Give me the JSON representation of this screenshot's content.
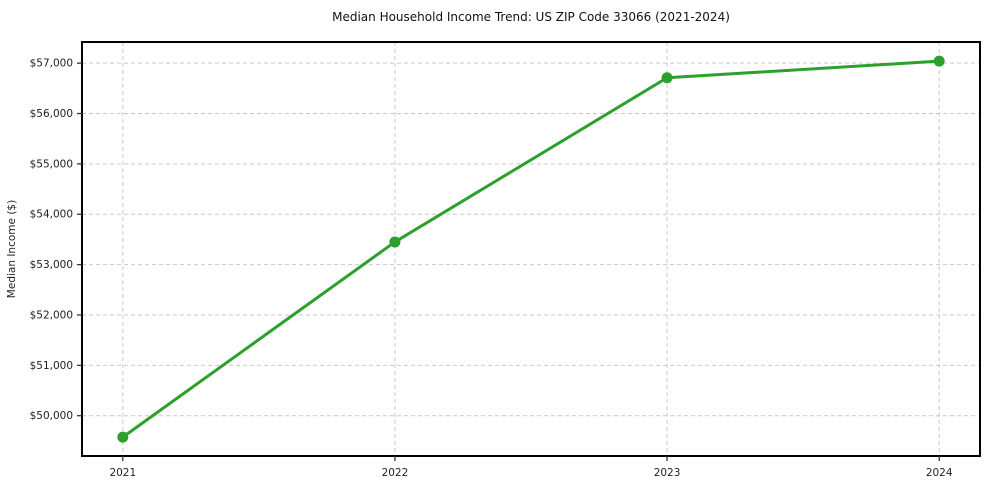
{
  "chart_data": {
    "type": "line",
    "title": "Median Household Income Trend: US ZIP Code 33066 (2021-2024)",
    "xlabel": "",
    "ylabel": "Median Income ($)",
    "x": [
      2021,
      2022,
      2023,
      2024
    ],
    "x_tick_labels": [
      "2021",
      "2022",
      "2023",
      "2024"
    ],
    "series": [
      {
        "name": "Median Household Income",
        "values": [
          49575,
          53450,
          56710,
          57040
        ]
      }
    ],
    "y_ticks": [
      50000,
      51000,
      52000,
      53000,
      54000,
      55000,
      56000,
      57000
    ],
    "y_tick_labels": [
      "$50,000",
      "$51,000",
      "$52,000",
      "$53,000",
      "$54,000",
      "$55,000",
      "$56,000",
      "$57,000"
    ],
    "ylim": [
      49200,
      57420
    ],
    "xlim": [
      2020.85,
      2024.15
    ],
    "grid": "dashed-both",
    "legend": "none",
    "marker": "circle",
    "colors": {
      "line": "#2ca02c",
      "marker": "#2ca02c",
      "grid": "#c9c9c9",
      "border": "#000000",
      "tick": "#333333",
      "text": "#1f1f1f",
      "title": "#111111",
      "background": "#ffffff"
    }
  }
}
